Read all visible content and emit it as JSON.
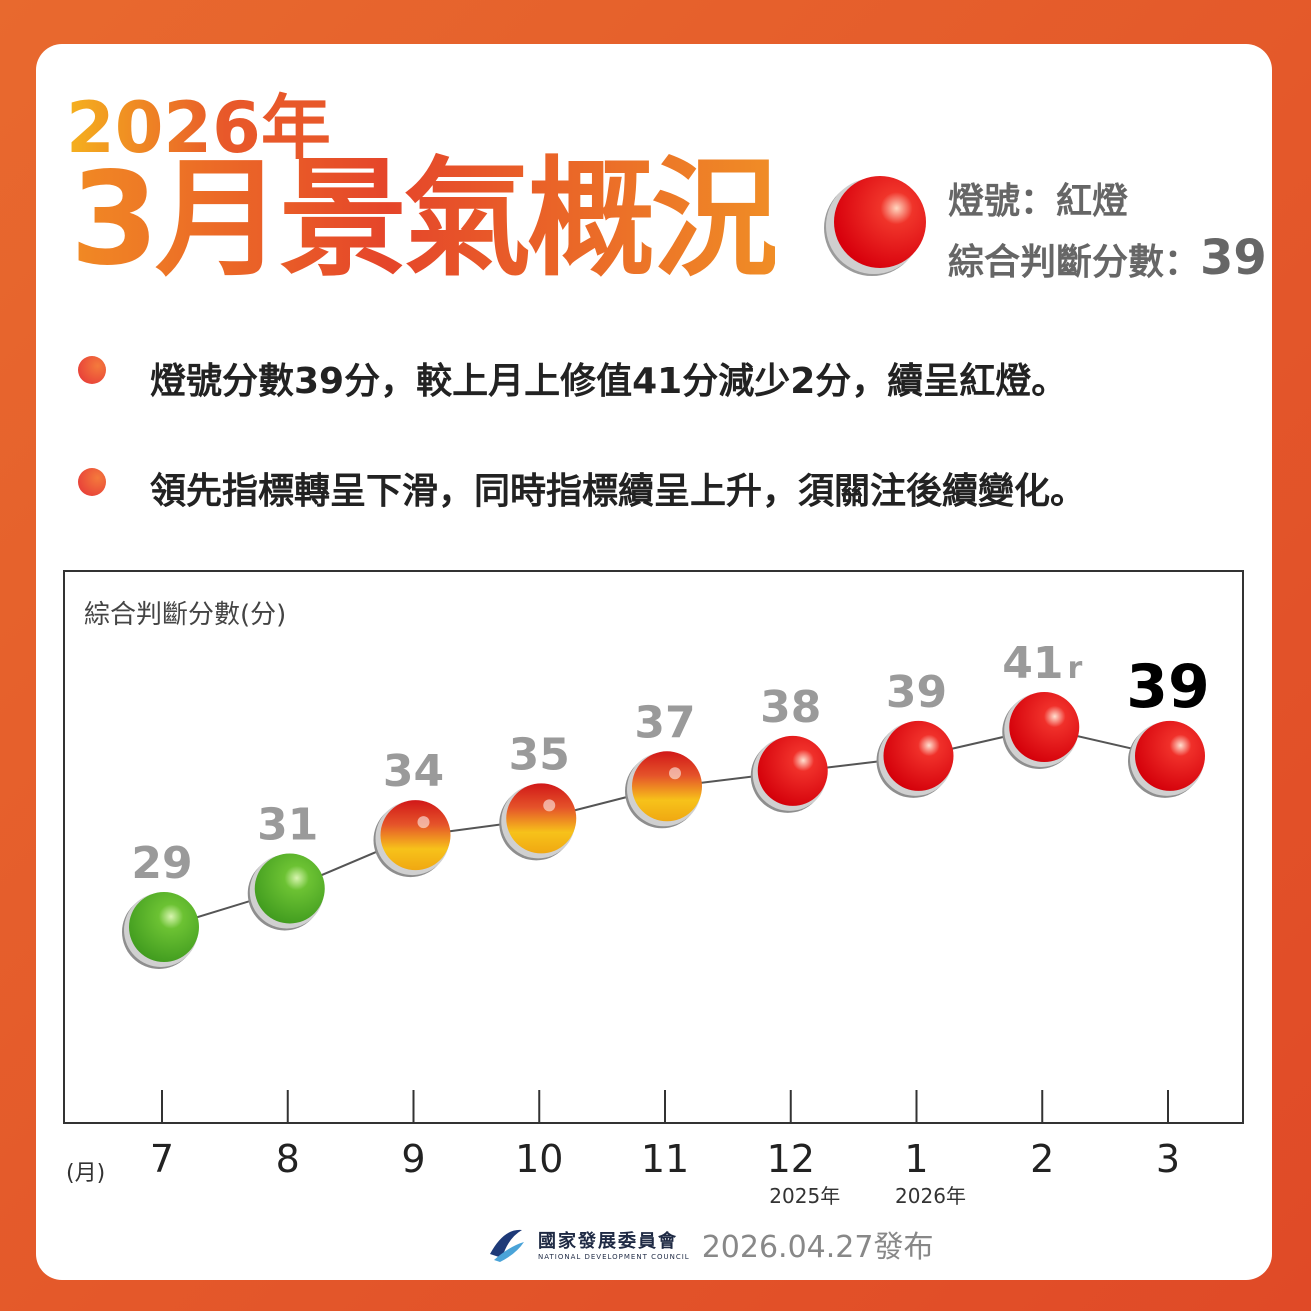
{
  "header": {
    "year": "2026年",
    "title": "3月景氣概況",
    "light_label": "燈號：紅燈",
    "score_label": "綜合判斷分數：",
    "score": "39",
    "light_color": "red"
  },
  "bullets": [
    "燈號分數39分，較上月上修值41分減少2分，續呈紅燈。",
    "領先指標轉呈下滑，同時指標續呈上升，須關注後續變化。"
  ],
  "chart_data": {
    "type": "line",
    "ylabel": "綜合判斷分數(分)",
    "xlabel": "(月)",
    "categories": [
      "7",
      "8",
      "9",
      "10",
      "11",
      "12",
      "1",
      "2",
      "3"
    ],
    "year_labels": [
      {
        "category": "12",
        "label": "2025年"
      },
      {
        "category": "1",
        "label": "2026年"
      }
    ],
    "values": [
      29,
      31,
      34,
      35,
      37,
      38,
      39,
      41,
      39
    ],
    "value_labels": [
      "29",
      "31",
      "34",
      "35",
      "37",
      "38",
      "39",
      "41",
      "39"
    ],
    "revised_marker": {
      "index": 7,
      "text": "r"
    },
    "lights": [
      "green",
      "green",
      "yellow-red",
      "yellow-red",
      "yellow-red",
      "red",
      "red",
      "red",
      "red"
    ],
    "light_colors": {
      "green": "#5bb52e",
      "yellow-red": "#f2b81a",
      "red": "#e3161c"
    },
    "grid": false
  },
  "footer": {
    "org_cn": "國家發展委員會",
    "org_en": "NATIONAL DEVELOPMENT COUNCIL",
    "date": "2026.04.27發布"
  }
}
